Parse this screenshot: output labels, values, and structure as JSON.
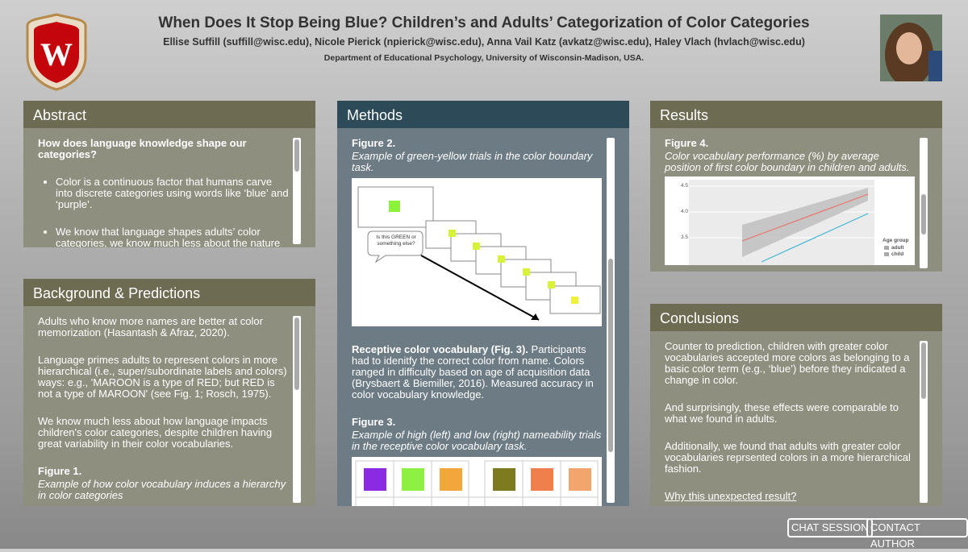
{
  "header": {
    "title": "When Does It Stop Being Blue? Children’s and Adults’ Categorization of Color Categories",
    "authors": "Ellise Suffill (suffill@wisc.edu), Nicole Pierick (npierick@wisc.edu), Anna Vail Katz (avkatz@wisc.edu), Haley Vlach (hvlach@wisc.edu)",
    "affiliation": "Department of Educational Psychology, University of Wisconsin-Madison, USA."
  },
  "panels": {
    "abstract": {
      "title": "Abstract",
      "heading": "How does language knowledge shape our categories?",
      "bullets": [
        "Color is a continuous factor that humans carve into discrete categories using words like ‘blue’ and ‘purple’.",
        "We know that language shapes adults’ color categories, we know much less about the nature of"
      ]
    },
    "background": {
      "title": "Background & Predictions",
      "paragraphs": [
        "Adults who know more names are better at color memorization (Hasantash & Afraz, 2020).",
        "Language primes adults to represent colors in more hierarchical (i.e., super/subordinate labels and colors) ways: e.g., 'MAROON is a type of RED; but RED is not a type of MAROON' (see Fig. 1; Rosch, 1975).",
        "We know much less about how language impacts children's color categories, despite children having great variability in their color vocabularies."
      ],
      "figure_label": "Figure 1.",
      "figure_caption": "Example of how color vocabulary induces a hierarchy in color categories"
    },
    "methods": {
      "title": "Methods",
      "figure2_label": "Figure 2.",
      "figure2_caption": "Example of green-yellow trials in the color boundary task.",
      "figure2_prompt": "Is this GREEN or something else?",
      "paragraph_lead": "Receptive color vocabulary (Fig. 3).",
      "paragraph": "Participants had to idenitfy the correct color from name. Colors ranged in difficulty based on age of acquisition data (Brysbaert & Biemiller, 2016). Measured accuracy in color vocabulary knowledge.",
      "figure3_label": "Figure 3.",
      "figure3_caption": "Example of high (left) and low (right) nameability trials in the receptive color vocabulary task."
    },
    "results": {
      "title": "Results",
      "figure_label": "Figure 4.",
      "figure_caption": "Color vocabulary performance (%) by average position of first color boundary in children and adults.",
      "chart_ticks": [
        "4.5",
        "4.0",
        "3.5"
      ],
      "legend_title": "Age group",
      "legend_items": [
        "adult",
        "child"
      ]
    },
    "conclusions": {
      "title": "Conclusions",
      "paragraphs": [
        "Counter to prediction, children with greater color vocabularies accepted more colors as belonging to a basic color term (e.g., ‘blue’) before they indicated a change in color.",
        "And surprisingly, these effects were comparable to what we found in adults.",
        "Additionally, we found that adults with greater color vocabularies reprsented colors in a more hierarchical fashion."
      ],
      "link": "Why this unexpected result?"
    }
  },
  "buttons": [
    "CHAT SESSION",
    "CONTACT AUTHOR"
  ]
}
